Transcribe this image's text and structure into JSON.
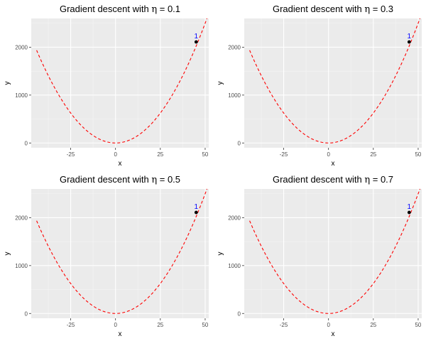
{
  "chart_data": [
    {
      "type": "line",
      "title_prefix": "Gradient descent with ",
      "title_symbol": "η",
      "title_suffix": " = 0.1",
      "xlabel": "x",
      "ylabel": "y",
      "xlim": [
        -47,
        52
      ],
      "ylim": [
        -100,
        2600
      ],
      "x_ticks": [
        -25,
        0,
        25,
        50
      ],
      "y_ticks": [
        0,
        1000,
        2000
      ],
      "grid": true,
      "curve": {
        "function": "y = x^2",
        "x_from": -44,
        "x_to": 51,
        "color": "#ff0000",
        "style": "dashed"
      },
      "points": [
        {
          "label": "1",
          "x": 45,
          "y": 2110
        }
      ],
      "point_color": "#000000",
      "label_color": "#0000ff"
    },
    {
      "type": "line",
      "title_prefix": "Gradient descent with ",
      "title_symbol": "η",
      "title_suffix": " = 0.3",
      "xlabel": "x",
      "ylabel": "y",
      "xlim": [
        -47,
        52
      ],
      "ylim": [
        -100,
        2600
      ],
      "x_ticks": [
        -25,
        0,
        25,
        50
      ],
      "y_ticks": [
        0,
        1000,
        2000
      ],
      "grid": true,
      "curve": {
        "function": "y = x^2",
        "x_from": -44,
        "x_to": 51,
        "color": "#ff0000",
        "style": "dashed"
      },
      "points": [
        {
          "label": "1",
          "x": 45,
          "y": 2110
        }
      ],
      "point_color": "#000000",
      "label_color": "#0000ff"
    },
    {
      "type": "line",
      "title_prefix": "Gradient descent with ",
      "title_symbol": "η",
      "title_suffix": " = 0.5",
      "xlabel": "x",
      "ylabel": "y",
      "xlim": [
        -47,
        52
      ],
      "ylim": [
        -100,
        2600
      ],
      "x_ticks": [
        -25,
        0,
        25,
        50
      ],
      "y_ticks": [
        0,
        1000,
        2000
      ],
      "grid": true,
      "curve": {
        "function": "y = x^2",
        "x_from": -44,
        "x_to": 51,
        "color": "#ff0000",
        "style": "dashed"
      },
      "points": [
        {
          "label": "1",
          "x": 45,
          "y": 2110
        }
      ],
      "point_color": "#000000",
      "label_color": "#0000ff"
    },
    {
      "type": "line",
      "title_prefix": "Gradient descent with ",
      "title_symbol": "η",
      "title_suffix": " = 0.7",
      "xlabel": "x",
      "ylabel": "y",
      "xlim": [
        -47,
        52
      ],
      "ylim": [
        -100,
        2600
      ],
      "x_ticks": [
        -25,
        0,
        25,
        50
      ],
      "y_ticks": [
        0,
        1000,
        2000
      ],
      "grid": true,
      "curve": {
        "function": "y = x^2",
        "x_from": -44,
        "x_to": 51,
        "color": "#ff0000",
        "style": "dashed"
      },
      "points": [
        {
          "label": "1",
          "x": 45,
          "y": 2110
        }
      ],
      "point_color": "#000000",
      "label_color": "#0000ff"
    }
  ]
}
